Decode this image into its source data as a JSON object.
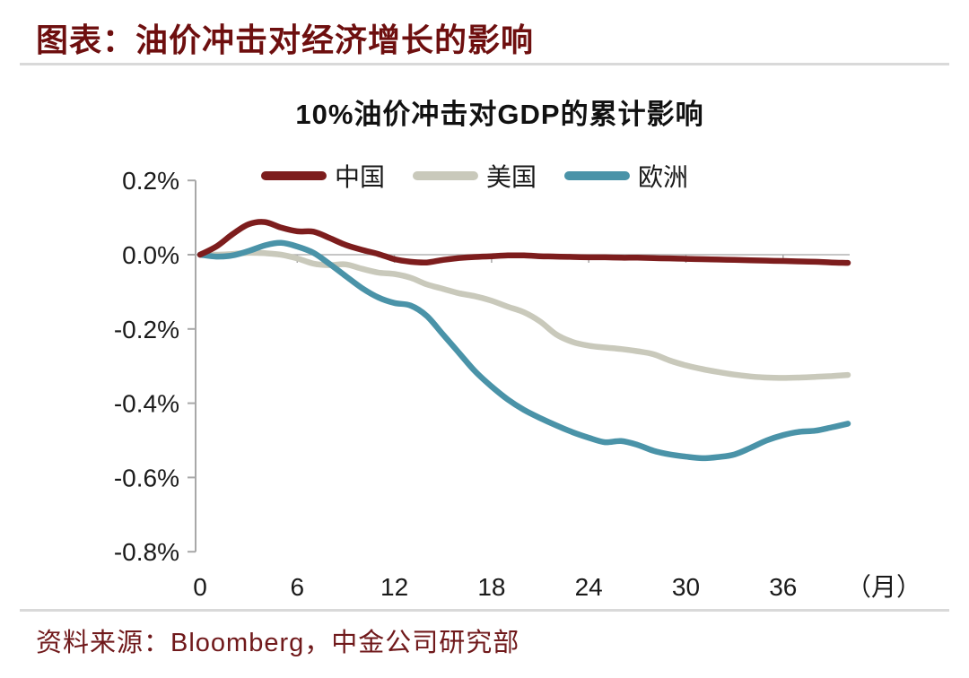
{
  "page": {
    "title": "图表：油价冲击对经济增长的影响",
    "source": "资料来源：Bloomberg，中金公司研究部"
  },
  "colors": {
    "title_maroon": "#6e0f0f",
    "source_maroon": "#70191b",
    "axis": "#a8a8a8",
    "gridline": "#b3b3b3",
    "tick_text": "#1a1a1a",
    "divider": "#d9d9d9"
  },
  "chart_data": {
    "type": "line",
    "title": "10%油价冲击对GDP的累计影响",
    "xlabel": "（月）",
    "ylabel": "",
    "xlim": [
      0,
      40
    ],
    "ylim": [
      -0.8,
      0.2
    ],
    "grid": "zero-line-only",
    "legend_position": "top",
    "x_ticks": [
      {
        "month": 0,
        "label": "0"
      },
      {
        "month": 6,
        "label": "6"
      },
      {
        "month": 12,
        "label": "12"
      },
      {
        "month": 18,
        "label": "18"
      },
      {
        "month": 24,
        "label": "24"
      },
      {
        "month": 30,
        "label": "30"
      },
      {
        "month": 36,
        "label": "36"
      }
    ],
    "y_ticks": [
      {
        "value": 0.2,
        "label": "0.2%"
      },
      {
        "value": 0.0,
        "label": "0.0%"
      },
      {
        "value": -0.2,
        "label": "-0.2%"
      },
      {
        "value": -0.4,
        "label": "-0.4%"
      },
      {
        "value": -0.6,
        "label": "-0.6%"
      },
      {
        "value": -0.8,
        "label": "-0.8%"
      }
    ],
    "x": [
      0,
      1,
      2,
      3,
      4,
      5,
      6,
      7,
      8,
      9,
      10,
      11,
      12,
      13,
      14,
      15,
      16,
      17,
      18,
      19,
      20,
      21,
      22,
      23,
      24,
      25,
      26,
      27,
      28,
      29,
      30,
      31,
      32,
      33,
      34,
      35,
      36,
      37,
      38,
      39,
      40
    ],
    "series": [
      {
        "name": "中国",
        "color": "#7d1d1d",
        "values": [
          0.0,
          0.022,
          0.055,
          0.082,
          0.088,
          0.073,
          0.063,
          0.062,
          0.045,
          0.026,
          0.013,
          0.002,
          -0.012,
          -0.019,
          -0.021,
          -0.014,
          -0.009,
          -0.006,
          -0.004,
          -0.002,
          -0.002,
          -0.004,
          -0.005,
          -0.006,
          -0.007,
          -0.007,
          -0.008,
          -0.008,
          -0.009,
          -0.01,
          -0.011,
          -0.012,
          -0.013,
          -0.014,
          -0.015,
          -0.016,
          -0.017,
          -0.018,
          -0.019,
          -0.021,
          -0.022
        ]
      },
      {
        "name": "美国",
        "color": "#c9c9bb",
        "values": [
          0.0,
          0.0,
          0.002,
          0.005,
          0.004,
          0.0,
          -0.01,
          -0.024,
          -0.028,
          -0.026,
          -0.038,
          -0.048,
          -0.052,
          -0.062,
          -0.08,
          -0.092,
          -0.104,
          -0.112,
          -0.124,
          -0.14,
          -0.155,
          -0.18,
          -0.215,
          -0.235,
          -0.245,
          -0.25,
          -0.254,
          -0.26,
          -0.268,
          -0.285,
          -0.298,
          -0.308,
          -0.316,
          -0.323,
          -0.328,
          -0.331,
          -0.332,
          -0.331,
          -0.329,
          -0.327,
          -0.324
        ]
      },
      {
        "name": "欧洲",
        "color": "#4a93a8",
        "values": [
          0.0,
          -0.005,
          -0.002,
          0.01,
          0.025,
          0.032,
          0.022,
          0.005,
          -0.025,
          -0.058,
          -0.09,
          -0.115,
          -0.13,
          -0.137,
          -0.165,
          -0.215,
          -0.265,
          -0.315,
          -0.355,
          -0.39,
          -0.418,
          -0.44,
          -0.46,
          -0.478,
          -0.493,
          -0.505,
          -0.502,
          -0.512,
          -0.528,
          -0.538,
          -0.544,
          -0.548,
          -0.545,
          -0.538,
          -0.52,
          -0.5,
          -0.486,
          -0.477,
          -0.474,
          -0.465,
          -0.455
        ]
      }
    ]
  }
}
